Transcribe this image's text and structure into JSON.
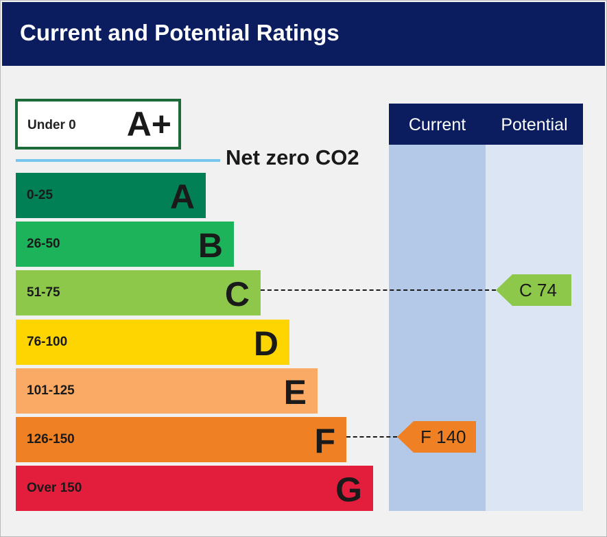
{
  "header": {
    "title": "Current and Potential Ratings"
  },
  "aplus": {
    "range": "Under 0",
    "letter": "A+",
    "color": "#1d6b3a"
  },
  "net_zero": {
    "label": "Net zero CO2",
    "color": "#75c5ec"
  },
  "columns": {
    "current": "Current",
    "potential": "Potential"
  },
  "chart_data": {
    "type": "bar",
    "title": "Current and Potential Ratings",
    "bands": [
      {
        "range": "0-25",
        "letter": "A",
        "color": "#008054"
      },
      {
        "range": "26-50",
        "letter": "B",
        "color": "#1db35a"
      },
      {
        "range": "51-75",
        "letter": "C",
        "color": "#8dc84a"
      },
      {
        "range": "76-100",
        "letter": "D",
        "color": "#ffd500"
      },
      {
        "range": "101-125",
        "letter": "E",
        "color": "#fbaa65"
      },
      {
        "range": "126-150",
        "letter": "F",
        "color": "#ef8023"
      },
      {
        "range": "Over 150",
        "letter": "G",
        "color": "#e31d3c"
      }
    ],
    "current": {
      "label": "F 140",
      "band": "F",
      "value": 140,
      "color": "#ef8023"
    },
    "potential": {
      "label": "C 74",
      "band": "C",
      "value": 74,
      "color": "#8dc84a"
    }
  }
}
